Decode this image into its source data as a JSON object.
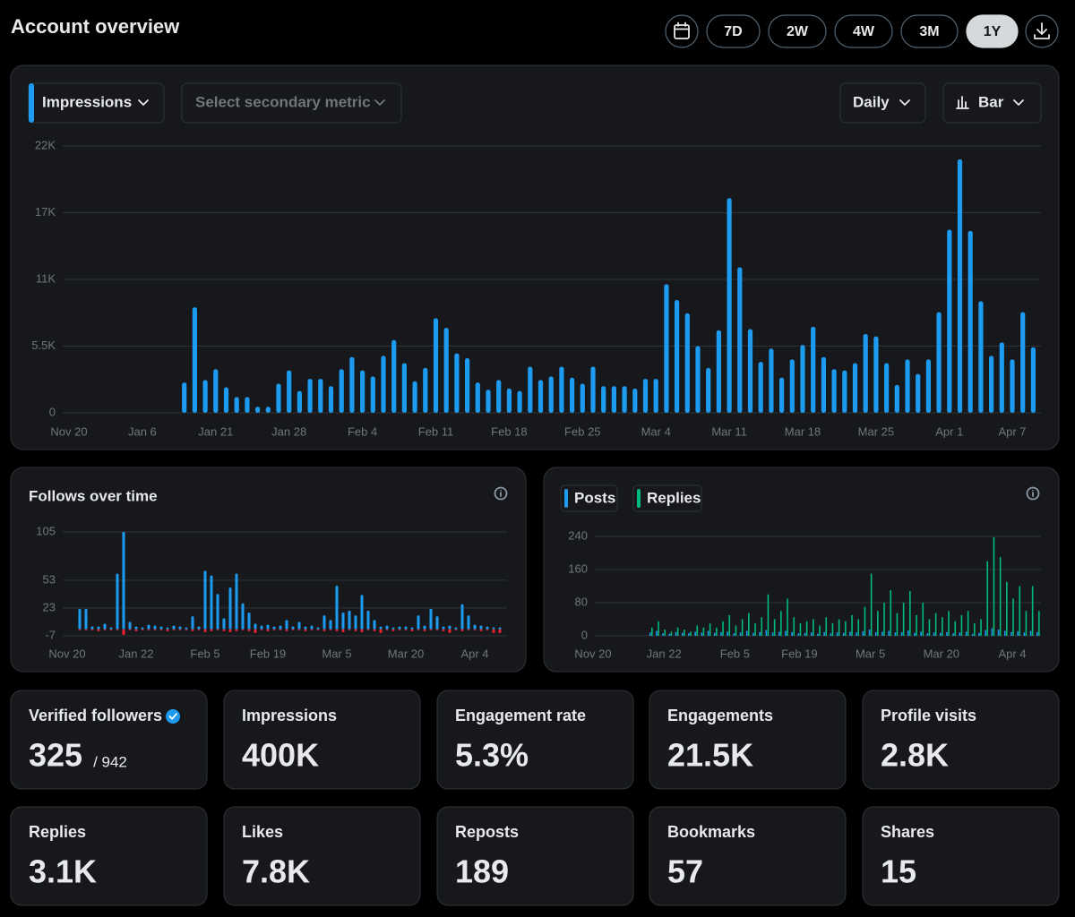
{
  "header": {
    "title": "Account overview",
    "ranges": [
      "7D",
      "2W",
      "4W",
      "3M",
      "1Y"
    ],
    "selected_index": 4
  },
  "controls": {
    "primary_metric": "Impressions",
    "secondary_metric": "Select secondary metric",
    "interval": "Daily",
    "chart_style": "Bar"
  },
  "chart_data": [
    {
      "type": "bar",
      "color": "#1d9bf0",
      "grid": true,
      "ylim": [
        0,
        22000
      ],
      "yticks": [
        0,
        {
          "value": 5500,
          "label": "5.5K"
        },
        {
          "value": 11000,
          "label": "11K"
        },
        {
          "value": 16500,
          "label": "17K"
        },
        {
          "value": 22000,
          "label": "22K"
        }
      ],
      "categories": [
        "Nov 20",
        null,
        null,
        null,
        null,
        null,
        null,
        "Jan 6",
        null,
        null,
        null,
        null,
        null,
        null,
        "Jan 21",
        null,
        null,
        null,
        null,
        null,
        null,
        "Jan 28",
        null,
        null,
        null,
        null,
        null,
        null,
        "Feb 4",
        null,
        null,
        null,
        null,
        null,
        null,
        "Feb 11",
        null,
        null,
        null,
        null,
        null,
        null,
        "Feb 18",
        null,
        null,
        null,
        null,
        null,
        null,
        "Feb 25",
        null,
        null,
        null,
        null,
        null,
        null,
        "Mar 4",
        null,
        null,
        null,
        null,
        null,
        null,
        "Mar 11",
        null,
        null,
        null,
        null,
        null,
        null,
        "Mar 18",
        null,
        null,
        null,
        null,
        null,
        null,
        "Mar 25",
        null,
        null,
        null,
        null,
        null,
        null,
        "Apr 1",
        null,
        null,
        null,
        null,
        null,
        "Apr 7",
        null,
        null
      ],
      "values": [
        null,
        null,
        null,
        null,
        null,
        null,
        null,
        null,
        null,
        null,
        null,
        2500,
        8700,
        2700,
        3600,
        2100,
        1300,
        1300,
        500,
        500,
        2400,
        3500,
        1800,
        2800,
        2800,
        2200,
        3600,
        4600,
        3500,
        3000,
        4700,
        6000,
        4100,
        2600,
        3700,
        7800,
        7000,
        4900,
        4500,
        2500,
        1900,
        2700,
        2000,
        1800,
        3800,
        2700,
        3000,
        3800,
        2900,
        2400,
        3800,
        2200,
        2200,
        2200,
        2000,
        2800,
        2800,
        10600,
        9300,
        8200,
        5500,
        3700,
        6800,
        17700,
        12000,
        6900,
        4200,
        5300,
        2900,
        4400,
        5600,
        7100,
        4600,
        3600,
        3500,
        4100,
        6500,
        6300,
        4100,
        2300,
        4400,
        3200,
        4400,
        8300,
        15100,
        20900,
        15000,
        9200,
        4700,
        5800,
        4400,
        8300,
        5400
      ]
    },
    {
      "type": "bar",
      "title": "Follows over time",
      "grid": true,
      "ylim": [
        -7,
        105
      ],
      "yticks": [
        -7,
        23,
        53,
        105
      ],
      "categories": [
        "Nov 20",
        null,
        null,
        null,
        null,
        null,
        null,
        null,
        null,
        null,
        null,
        "Jan 22",
        null,
        null,
        null,
        null,
        null,
        null,
        null,
        null,
        null,
        null,
        "Feb 5",
        null,
        null,
        null,
        null,
        null,
        null,
        null,
        null,
        null,
        "Feb 19",
        null,
        null,
        null,
        null,
        null,
        null,
        null,
        null,
        null,
        null,
        "Mar 5",
        null,
        null,
        null,
        null,
        null,
        null,
        null,
        null,
        null,
        null,
        "Mar 20",
        null,
        null,
        null,
        null,
        null,
        null,
        null,
        null,
        null,
        null,
        "Apr 4",
        null,
        null,
        null,
        null
      ],
      "series": [
        {
          "color": "#1d9bf0",
          "values": [
            null,
            null,
            22,
            22,
            3,
            3,
            6,
            2,
            60,
            105,
            8,
            3,
            2,
            5,
            4,
            3,
            2,
            4,
            3,
            2,
            14,
            3,
            63,
            58,
            38,
            12,
            45,
            60,
            28,
            18,
            6,
            4,
            5,
            3,
            4,
            10,
            3,
            8,
            3,
            4,
            2,
            15,
            10,
            47,
            18,
            20,
            15,
            37,
            20,
            10,
            3,
            4,
            2,
            3,
            3,
            2,
            15,
            4,
            22,
            14,
            3,
            4,
            2,
            27,
            15,
            5,
            4,
            3,
            2,
            2
          ]
        },
        {
          "color": "#f4212e",
          "values": [
            null,
            null,
            -1,
            -1,
            -1,
            -2,
            -1,
            -1,
            -1,
            -6,
            -1,
            -2,
            -1,
            -1,
            -1,
            -1,
            -2,
            -1,
            -1,
            -1,
            -2,
            -1,
            -3,
            -2,
            -1,
            -2,
            -3,
            -2,
            -1,
            -2,
            -4,
            -1,
            -2,
            -1,
            -1,
            -2,
            -1,
            -1,
            -2,
            -1,
            -1,
            -2,
            -1,
            -2,
            -3,
            -1,
            -2,
            -3,
            -1,
            -2,
            -4,
            -1,
            -2,
            -1,
            -1,
            -2,
            -1,
            -2,
            -1,
            -1,
            -2,
            -4,
            -1,
            -2,
            -1,
            -1,
            -2,
            -1,
            -4,
            -4
          ]
        }
      ]
    },
    {
      "type": "bar",
      "grid": true,
      "ylim": [
        0,
        240
      ],
      "yticks": [
        0,
        80,
        160,
        240
      ],
      "categories": [
        "Nov 20",
        null,
        null,
        null,
        null,
        null,
        null,
        null,
        null,
        null,
        null,
        "Jan 22",
        null,
        null,
        null,
        null,
        null,
        null,
        null,
        null,
        null,
        null,
        "Feb 5",
        null,
        null,
        null,
        null,
        null,
        null,
        null,
        null,
        null,
        "Feb 19",
        null,
        null,
        null,
        null,
        null,
        null,
        null,
        null,
        null,
        null,
        "Mar 5",
        null,
        null,
        null,
        null,
        null,
        null,
        null,
        null,
        null,
        null,
        "Mar 20",
        null,
        null,
        null,
        null,
        null,
        null,
        null,
        null,
        null,
        null,
        "Apr 4",
        null,
        null,
        null,
        null
      ],
      "series": [
        {
          "name": "Posts",
          "color": "#1d9bf0",
          "values": [
            null,
            null,
            null,
            null,
            null,
            null,
            null,
            null,
            null,
            8,
            12,
            6,
            5,
            9,
            7,
            6,
            10,
            8,
            12,
            7,
            9,
            10,
            6,
            8,
            12,
            7,
            9,
            14,
            8,
            10,
            12,
            9,
            6,
            7,
            8,
            5,
            9,
            6,
            8,
            7,
            10,
            8,
            11,
            15,
            9,
            10,
            12,
            8,
            9,
            13,
            7,
            10,
            6,
            8,
            7,
            9,
            6,
            8,
            10,
            5,
            7,
            14,
            18,
            15,
            12,
            9,
            11,
            8,
            12,
            9
          ]
        },
        {
          "name": "Replies",
          "color": "#00ba7c",
          "values": [
            null,
            null,
            null,
            null,
            null,
            null,
            null,
            null,
            null,
            20,
            35,
            15,
            10,
            20,
            15,
            10,
            25,
            20,
            30,
            20,
            35,
            50,
            25,
            40,
            55,
            30,
            45,
            100,
            40,
            60,
            90,
            45,
            30,
            35,
            40,
            25,
            45,
            30,
            40,
            35,
            50,
            40,
            70,
            150,
            60,
            80,
            110,
            55,
            80,
            108,
            50,
            80,
            40,
            55,
            45,
            60,
            35,
            50,
            60,
            30,
            40,
            180,
            238,
            190,
            130,
            90,
            120,
            60,
            120,
            60
          ]
        }
      ]
    }
  ],
  "stats": [
    {
      "label": "Verified followers",
      "value": "325",
      "total": "/ 942",
      "verified": true
    },
    {
      "label": "Impressions",
      "value": "400K"
    },
    {
      "label": "Engagement rate",
      "value": "5.3%"
    },
    {
      "label": "Engagements",
      "value": "21.5K"
    },
    {
      "label": "Profile visits",
      "value": "2.8K"
    },
    {
      "label": "Replies",
      "value": "3.1K"
    },
    {
      "label": "Likes",
      "value": "7.8K"
    },
    {
      "label": "Reposts",
      "value": "189"
    },
    {
      "label": "Bookmarks",
      "value": "57"
    },
    {
      "label": "Shares",
      "value": "15"
    }
  ]
}
